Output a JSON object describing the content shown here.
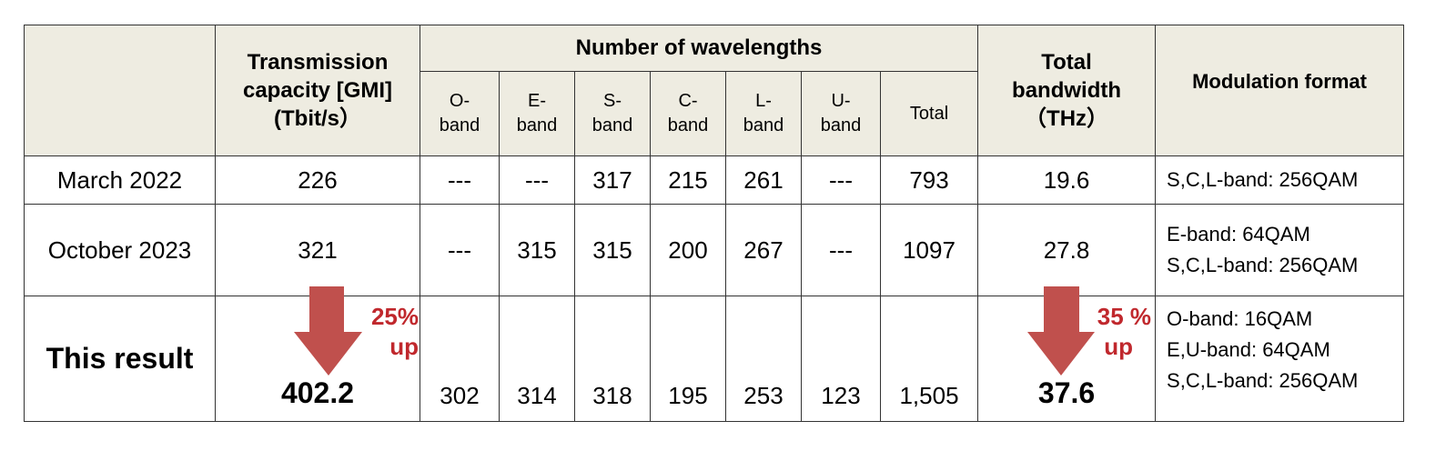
{
  "header": {
    "capacity": "Transmission capacity [GMI] (Tbit/s）",
    "wavelengths": "Number of wavelengths",
    "bands": [
      "O-band",
      "E-band",
      "S-band",
      "C-band",
      "L-band",
      "U-band",
      "Total"
    ],
    "bandwidth": "Total bandwidth（THz）",
    "modulation": "Modulation format"
  },
  "rows": [
    {
      "label": "March 2022",
      "capacity": "226",
      "bands": [
        "---",
        "---",
        "317",
        "215",
        "261",
        "---",
        "793"
      ],
      "bandwidth": "19.6",
      "modulation": [
        "S,C,L-band: 256QAM"
      ]
    },
    {
      "label": "October 2023",
      "capacity": "321",
      "bands": [
        "---",
        "315",
        "315",
        "200",
        "267",
        "---",
        "1097"
      ],
      "bandwidth": "27.8",
      "modulation": [
        "E-band: 64QAM",
        "S,C,L-band: 256QAM"
      ]
    },
    {
      "label": "This result",
      "capacity": "402.2",
      "bands": [
        "302",
        "314",
        "318",
        "195",
        "253",
        "123",
        "1,505"
      ],
      "bandwidth": "37.6",
      "modulation": [
        "O-band: 16QAM",
        "E,U-band: 64QAM",
        "S,C,L-band: 256QAM"
      ]
    }
  ],
  "annotations": {
    "capacity_increase": [
      "25%",
      "up"
    ],
    "bandwidth_increase": [
      "35 %",
      "up"
    ]
  }
}
